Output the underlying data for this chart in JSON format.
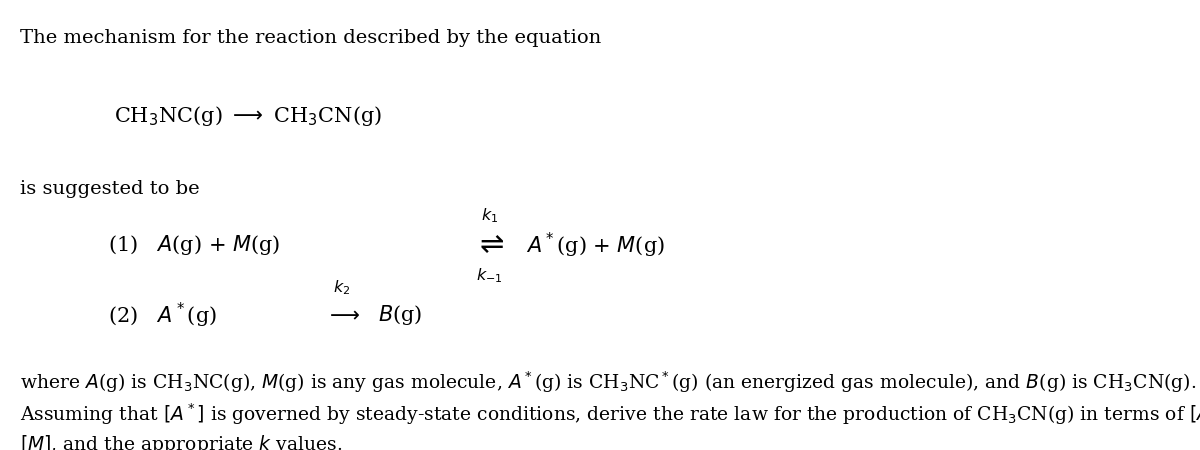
{
  "background_color": "#ffffff",
  "text_color": "#000000",
  "figsize": [
    12.0,
    4.5
  ],
  "dpi": 100,
  "fs_main": 14,
  "fs_chem": 15,
  "fs_small": 11,
  "line1": "The mechanism for the reaction described by the equation",
  "line_equation": "CH$_3$NC(g) $\\longrightarrow$ CH$_3$CN(g)",
  "line_suggested": "is suggested to be",
  "rxn1_left": "(1)   $A$(g) + $M$(g)",
  "rxn1_right": "$A^*$(g) + $M$(g)",
  "rxn1_k1": "$k_1$",
  "rxn1_km1": "$k_{-1}$",
  "rxn2_left": "(2)   $A^*$(g)",
  "rxn2_right": "$B$(g)",
  "rxn2_k2": "$k_2$",
  "where_line": "where $A$(g) is CH$_3$NC(g), $M$(g) is any gas molecule, $A^*$(g) is CH$_3$NC$^*$(g) (an energized gas molecule), and $B$(g) is CH$_3$CN(g).",
  "assuming_line1": "Assuming that $[A^*]$ is governed by steady-state conditions, derive the rate law for the production of CH$_3$CN(g) in terms of $[A]$,",
  "assuming_line2": "$[M]$, and the appropriate $k$ values."
}
